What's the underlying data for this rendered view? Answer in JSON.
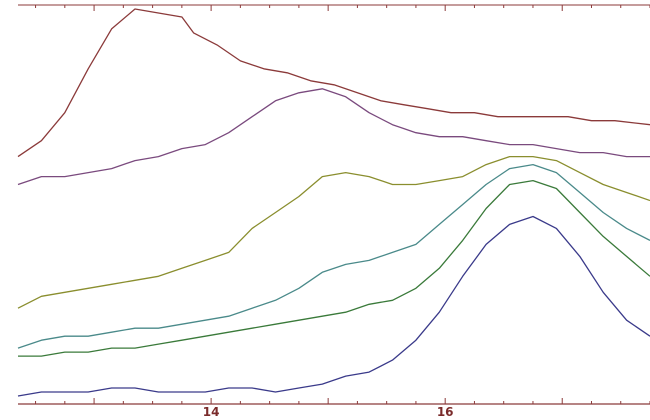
{
  "chart_data": {
    "type": "line",
    "title": "",
    "xlabel": "",
    "ylabel": "",
    "x_ticks": [
      {
        "value": 14,
        "label": "14"
      },
      {
        "value": 16,
        "label": "16"
      }
    ],
    "xlim": [
      12.35,
      17.75
    ],
    "ylim": [
      0,
      100
    ],
    "grid": false,
    "legend": "none",
    "colors": {
      "axis": "#8b3a3a",
      "tick_label": "#7a2b2b"
    },
    "series": [
      {
        "color": "#8b3a3a",
        "x": [
          12.35,
          12.55,
          12.75,
          12.95,
          13.15,
          13.35,
          13.55,
          13.75,
          13.85,
          14.05,
          14.25,
          14.45,
          14.65,
          14.85,
          15.05,
          15.25,
          15.45,
          15.65,
          15.85,
          16.05,
          16.25,
          16.45,
          16.65,
          16.85,
          17.05,
          17.25,
          17.45,
          17.75
        ],
        "y": [
          62,
          66,
          73,
          84,
          94,
          99,
          98,
          97,
          93,
          90,
          86,
          84,
          83,
          81,
          80,
          78,
          76,
          75,
          74,
          73,
          73,
          72,
          72,
          72,
          72,
          71,
          71,
          70
        ]
      },
      {
        "color": "#7a4a7e",
        "x": [
          12.35,
          12.55,
          12.75,
          12.95,
          13.15,
          13.35,
          13.55,
          13.75,
          13.95,
          14.15,
          14.35,
          14.55,
          14.75,
          14.95,
          15.15,
          15.35,
          15.55,
          15.75,
          15.95,
          16.15,
          16.35,
          16.55,
          16.75,
          16.95,
          17.15,
          17.35,
          17.55,
          17.75
        ],
        "y": [
          55,
          57,
          57,
          58,
          59,
          61,
          62,
          64,
          65,
          68,
          72,
          76,
          78,
          79,
          77,
          73,
          70,
          68,
          67,
          67,
          66,
          65,
          65,
          64,
          63,
          63,
          62,
          62
        ]
      },
      {
        "color": "#8a8e2e",
        "x": [
          12.35,
          12.55,
          12.75,
          12.95,
          13.15,
          13.35,
          13.55,
          13.75,
          13.95,
          14.15,
          14.35,
          14.55,
          14.75,
          14.95,
          15.15,
          15.35,
          15.55,
          15.75,
          15.95,
          16.15,
          16.35,
          16.55,
          16.75,
          16.95,
          17.15,
          17.35,
          17.55,
          17.75
        ],
        "y": [
          24,
          27,
          28,
          29,
          30,
          31,
          32,
          34,
          36,
          38,
          44,
          48,
          52,
          57,
          58,
          57,
          55,
          55,
          56,
          57,
          60,
          62,
          62,
          61,
          58,
          55,
          53,
          51
        ]
      },
      {
        "color": "#4a8a8a",
        "x": [
          12.35,
          12.55,
          12.75,
          12.95,
          13.15,
          13.35,
          13.55,
          13.75,
          13.95,
          14.15,
          14.35,
          14.55,
          14.75,
          14.95,
          15.15,
          15.35,
          15.55,
          15.75,
          15.95,
          16.15,
          16.35,
          16.55,
          16.75,
          16.95,
          17.15,
          17.35,
          17.55,
          17.75
        ],
        "y": [
          14,
          16,
          17,
          17,
          18,
          19,
          19,
          20,
          21,
          22,
          24,
          26,
          29,
          33,
          35,
          36,
          38,
          40,
          45,
          50,
          55,
          59,
          60,
          58,
          53,
          48,
          44,
          41
        ]
      },
      {
        "color": "#3a7a3a",
        "x": [
          12.35,
          12.55,
          12.75,
          12.95,
          13.15,
          13.35,
          13.55,
          13.75,
          13.95,
          14.15,
          14.35,
          14.55,
          14.75,
          14.95,
          15.15,
          15.35,
          15.55,
          15.75,
          15.95,
          16.15,
          16.35,
          16.55,
          16.75,
          16.95,
          17.15,
          17.35,
          17.55,
          17.75
        ],
        "y": [
          12,
          12,
          13,
          13,
          14,
          14,
          15,
          16,
          17,
          18,
          19,
          20,
          21,
          22,
          23,
          25,
          26,
          29,
          34,
          41,
          49,
          55,
          56,
          54,
          48,
          42,
          37,
          32
        ]
      },
      {
        "color": "#3a3a8a",
        "x": [
          12.35,
          12.55,
          12.75,
          12.95,
          13.15,
          13.35,
          13.55,
          13.75,
          13.95,
          14.15,
          14.35,
          14.55,
          14.75,
          14.95,
          15.15,
          15.35,
          15.55,
          15.75,
          15.95,
          16.15,
          16.35,
          16.55,
          16.75,
          16.95,
          17.15,
          17.35,
          17.55,
          17.75
        ],
        "y": [
          2,
          3,
          3,
          3,
          4,
          4,
          3,
          3,
          3,
          4,
          4,
          3,
          4,
          5,
          7,
          8,
          11,
          16,
          23,
          32,
          40,
          45,
          47,
          44,
          37,
          28,
          21,
          17
        ]
      }
    ]
  }
}
